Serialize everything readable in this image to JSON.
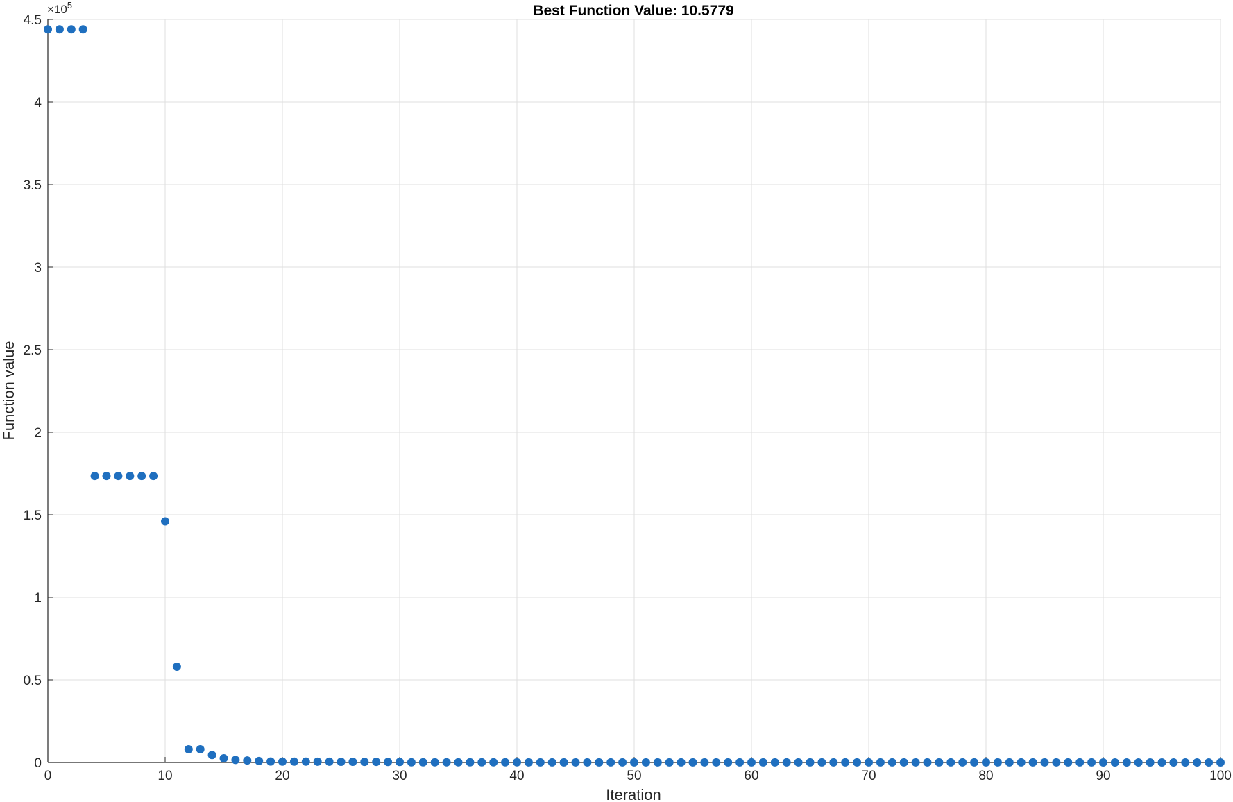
{
  "chart_data": {
    "type": "scatter",
    "title": "Best Function Value: 10.5779",
    "xlabel": "Iteration",
    "ylabel": "Function value",
    "y_exponent_label": "×10",
    "y_exponent_power": "5",
    "xlim": [
      0,
      100
    ],
    "ylim": [
      0,
      450000
    ],
    "grid": true,
    "marker_color": "#1f6fbf",
    "x_ticks": [
      0,
      10,
      20,
      30,
      40,
      50,
      60,
      70,
      80,
      90,
      100
    ],
    "x_tick_labels": [
      "0",
      "10",
      "20",
      "30",
      "40",
      "50",
      "60",
      "70",
      "80",
      "90",
      "100"
    ],
    "y_ticks": [
      0,
      50000,
      100000,
      150000,
      200000,
      250000,
      300000,
      350000,
      400000,
      450000
    ],
    "y_tick_labels": [
      "0",
      "0.5",
      "1",
      "1.5",
      "2",
      "2.5",
      "3",
      "3.5",
      "4",
      "4.5"
    ],
    "series": [
      {
        "x": [
          0,
          1,
          2,
          3,
          4,
          5,
          6,
          7,
          8,
          9,
          10,
          11,
          12,
          13,
          14,
          15,
          16,
          17,
          18,
          19,
          20,
          21,
          22,
          23,
          24,
          25,
          26,
          27,
          28,
          29,
          30,
          31,
          32,
          33,
          34,
          35,
          36,
          37,
          38,
          39,
          40,
          41,
          42,
          43,
          44,
          45,
          46,
          47,
          48,
          49,
          50,
          51,
          52,
          53,
          54,
          55,
          56,
          57,
          58,
          59,
          60,
          61,
          62,
          63,
          64,
          65,
          66,
          67,
          68,
          69,
          70,
          71,
          72,
          73,
          74,
          75,
          76,
          77,
          78,
          79,
          80,
          81,
          82,
          83,
          84,
          85,
          86,
          87,
          88,
          89,
          90,
          91,
          92,
          93,
          94,
          95,
          96,
          97,
          98,
          99,
          100
        ],
        "y": [
          444000,
          444000,
          444000,
          444000,
          173500,
          173500,
          173500,
          173500,
          173500,
          173500,
          146000,
          58000,
          8000,
          8000,
          4500,
          2500,
          1500,
          1200,
          900,
          600,
          500,
          500,
          500,
          450,
          450,
          400,
          400,
          350,
          350,
          300,
          300,
          100,
          100,
          100,
          100,
          100,
          100,
          100,
          100,
          100,
          100,
          50,
          50,
          50,
          50,
          50,
          50,
          50,
          50,
          50,
          50,
          50,
          50,
          50,
          50,
          50,
          50,
          50,
          50,
          50,
          50,
          50,
          50,
          50,
          50,
          50,
          50,
          50,
          50,
          50,
          50,
          30,
          30,
          30,
          30,
          30,
          30,
          30,
          30,
          30,
          30,
          30,
          30,
          30,
          30,
          30,
          30,
          30,
          30,
          30,
          20,
          20,
          20,
          20,
          20,
          20,
          20,
          20,
          20,
          20,
          10.5779
        ]
      }
    ]
  }
}
